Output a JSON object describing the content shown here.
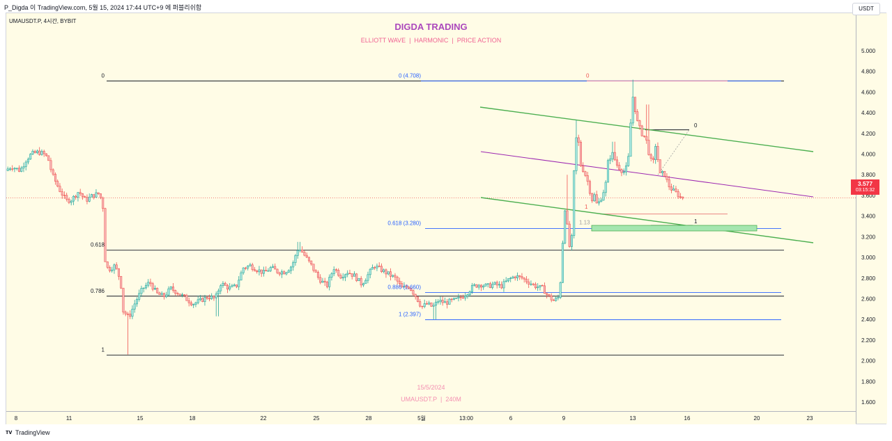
{
  "header": {
    "author_line": "P_Digda 이 TradingView.com, 5월 15, 2024 17:44 UTC+9 에 퍼블리쉬함"
  },
  "footer": {
    "brand": "TradingView"
  },
  "legend": {
    "symbol": "UMAUSDT.P, 4시간, BYBIT"
  },
  "watermark": {
    "title": "DIGDA TRADING",
    "subtitle": "ELLIOTT WAVE  |  HARMONIC  |  PRICE ACTION",
    "date": "15/5/2024",
    "symbol": "UMAUSDT.P  |  240M"
  },
  "price_axis": {
    "currency_button": "USDT",
    "last_price": "3.577",
    "countdown": "03:15:32"
  },
  "colors": {
    "up": "#26a69a",
    "up_fill": "#b2ebe4",
    "down": "#ef5350",
    "down_fill": "#f7bcbc",
    "bg": "#fffce6",
    "fib_blue": "#2962ff",
    "channel_green": "#4caf50",
    "channel_purple": "#9c27b0"
  },
  "chart_data": {
    "type": "candlestick",
    "ylim": [
      1.5,
      5.3
    ],
    "y_ticks": [
      "5.000",
      "4.800",
      "4.600",
      "4.400",
      "4.200",
      "4.000",
      "3.800",
      "3.600",
      "3.400",
      "3.200",
      "3.000",
      "2.800",
      "2.600",
      "2.400",
      "2.200",
      "2.000",
      "1.800",
      "1.600"
    ],
    "x_ticks": [
      "8",
      "11",
      "15",
      "18",
      "22",
      "25",
      "28",
      "5월",
      "13:00",
      "6",
      "9",
      "13",
      "16",
      "20",
      "23"
    ],
    "fib_left": [
      {
        "label": "0",
        "price": 4.708
      },
      {
        "label": "0.618",
        "price": 3.07
      },
      {
        "label": "0.786",
        "price": 2.625
      },
      {
        "label": "1",
        "price": 2.055
      }
    ],
    "fib_right": [
      {
        "label": "0 (4.708)",
        "price": 4.708
      },
      {
        "label": "0.618 (3.280)",
        "price": 3.28
      },
      {
        "label": "0.886 (2.660)",
        "price": 2.66
      },
      {
        "label": "1 (2.397)",
        "price": 2.397
      }
    ],
    "annotations": [
      {
        "label": "0",
        "price": 4.72
      },
      {
        "label": "0",
        "price": 4.24
      },
      {
        "label": "1",
        "price": 3.31
      },
      {
        "label": "1",
        "price": 3.45
      },
      {
        "label": "1.13",
        "price": 3.3
      }
    ],
    "last_price": 3.577
  }
}
